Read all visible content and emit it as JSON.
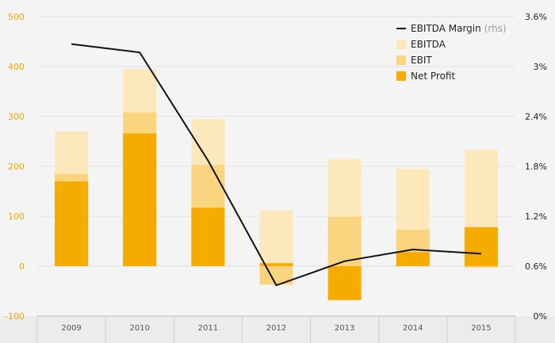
{
  "chart_data": {
    "type": "bar",
    "categories": [
      "2009",
      "2010",
      "2011",
      "2012",
      "2013",
      "2014",
      "2015"
    ],
    "series": [
      {
        "name": "EBITDA",
        "type": "bar",
        "axis": "left",
        "values": [
          270,
          395,
          295,
          112,
          214,
          195,
          233
        ],
        "color": "#fde8bb"
      },
      {
        "name": "EBIT",
        "type": "bar",
        "axis": "left",
        "values": [
          185,
          308,
          203,
          -37,
          99,
          73,
          -3
        ],
        "color": "#fbd47f"
      },
      {
        "name": "Net Profit",
        "type": "bar",
        "axis": "left",
        "values": [
          170,
          266,
          117,
          6,
          -68,
          28,
          78
        ],
        "color": "#f6ab00"
      },
      {
        "name": "EBITDA Margin",
        "legend_suffix": "(rhs)",
        "type": "line",
        "axis": "right",
        "values": [
          3.27,
          3.17,
          1.87,
          0.37,
          0.66,
          0.8,
          0.75
        ],
        "color": "#111111"
      }
    ],
    "y_left": {
      "ylim": [
        -100,
        500
      ],
      "ticks": [
        "-100",
        "0",
        "100",
        "200",
        "300",
        "400",
        "500"
      ],
      "tick_values": [
        -100,
        0,
        100,
        200,
        300,
        400,
        500
      ]
    },
    "y_right": {
      "ylim": [
        0,
        3.6
      ],
      "ticks": [
        "0%",
        "0.6%",
        "1.2%",
        "1.8%",
        "2.4%",
        "3%",
        "3.6%"
      ],
      "tick_values": [
        0,
        0.6,
        1.2,
        1.8,
        2.4,
        3.0,
        3.6
      ]
    },
    "title": "",
    "xlabel": "",
    "ylabel": "",
    "grid": "horizontal-light",
    "legend_position": "top-right"
  }
}
